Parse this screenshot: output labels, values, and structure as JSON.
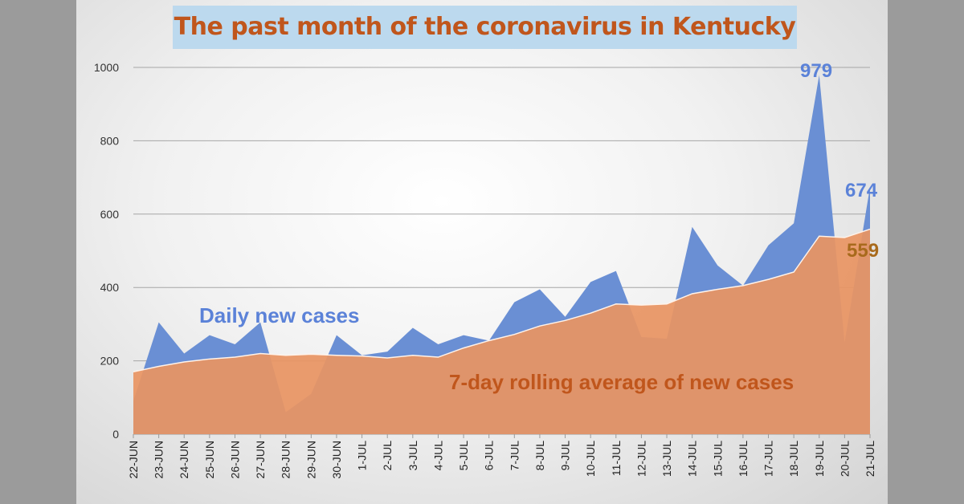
{
  "title": "The past month of the coronavirus in Kentucky",
  "colors": {
    "daily": "#6a8fd4",
    "average": "#e89563",
    "title": "#c0561c",
    "daily_label": "#5b82d8",
    "average_label": "#c0561c",
    "value_559": "#a86a1c",
    "title_bg": "#bcd9ee"
  },
  "chart_data": {
    "type": "area",
    "ylim": [
      0,
      1000
    ],
    "yticks": [
      "0",
      "200",
      "400",
      "600",
      "800",
      "1000"
    ],
    "categories": [
      "22-JUN",
      "23-JUN",
      "24-JUN",
      "25-JUN",
      "26-JUN",
      "27-JUN",
      "28-JUN",
      "29-JUN",
      "30-JUN",
      "1-JUL",
      "2-JUL",
      "3-JUL",
      "4-JUL",
      "5-JUL",
      "6-JUL",
      "7-JUL",
      "8-JUL",
      "9-JUL",
      "10-JUL",
      "11-JUL",
      "12-JUL",
      "13-JUL",
      "14-JUL",
      "15-JUL",
      "16-JUL",
      "17-JUL",
      "18-JUL",
      "19-JUL",
      "20-JUL",
      "21-JUL"
    ],
    "series": [
      {
        "name": "Daily new cases",
        "values": [
          90,
          305,
          220,
          270,
          245,
          305,
          60,
          110,
          270,
          215,
          225,
          290,
          245,
          270,
          255,
          360,
          395,
          320,
          415,
          445,
          265,
          260,
          565,
          460,
          405,
          515,
          575,
          979,
          250,
          674
        ]
      },
      {
        "name": "7-day rolling average of new cases",
        "values": [
          170,
          185,
          197,
          205,
          210,
          220,
          215,
          218,
          215,
          213,
          208,
          215,
          210,
          235,
          255,
          272,
          295,
          310,
          330,
          355,
          352,
          355,
          383,
          395,
          405,
          422,
          442,
          540,
          536,
          559
        ]
      }
    ],
    "annotations": {
      "peak": "979",
      "last_daily": "674",
      "last_average": "559",
      "daily_label": "Daily new cases",
      "average_label": "7-day rolling average of new cases"
    }
  }
}
